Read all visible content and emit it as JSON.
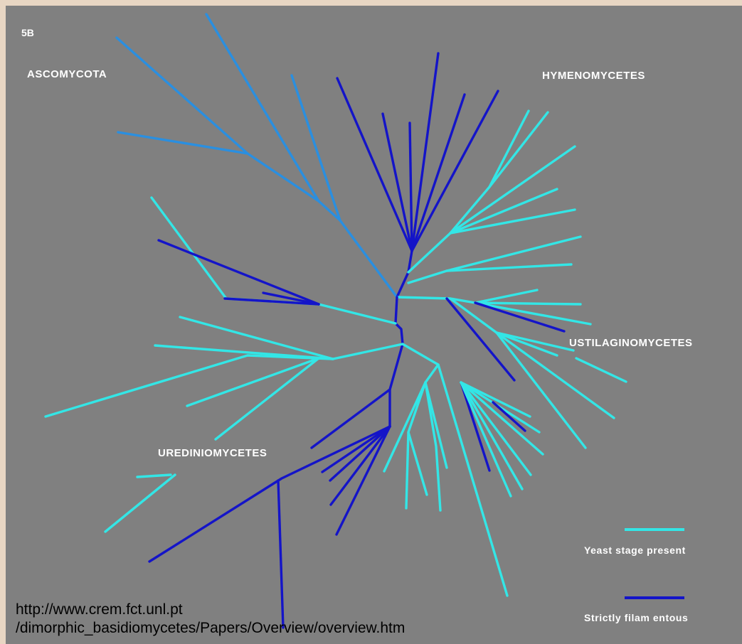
{
  "figure": {
    "panel_label": "5B",
    "clades": {
      "ascomycota": "ASCOMYCOTA",
      "hymenomycetes": "HYMENOMYCETES",
      "ustilaginomycetes": "USTILAGINOMYCETES",
      "urediniomycetes": "UREDINIOMYCETES"
    },
    "legend": {
      "yeast": {
        "label": "Yeast stage present",
        "color": "#33e6e6"
      },
      "filamentous": {
        "label": "Strictly filam entous",
        "color": "#1414c8"
      }
    },
    "ascomycota_color": "#2a8fe0",
    "source_url_line1": "http://www.crem.fct.unl.pt",
    "source_url_line2": "/dimorphic_basidiomycetes/Papers/Overview/overview.htm"
  }
}
